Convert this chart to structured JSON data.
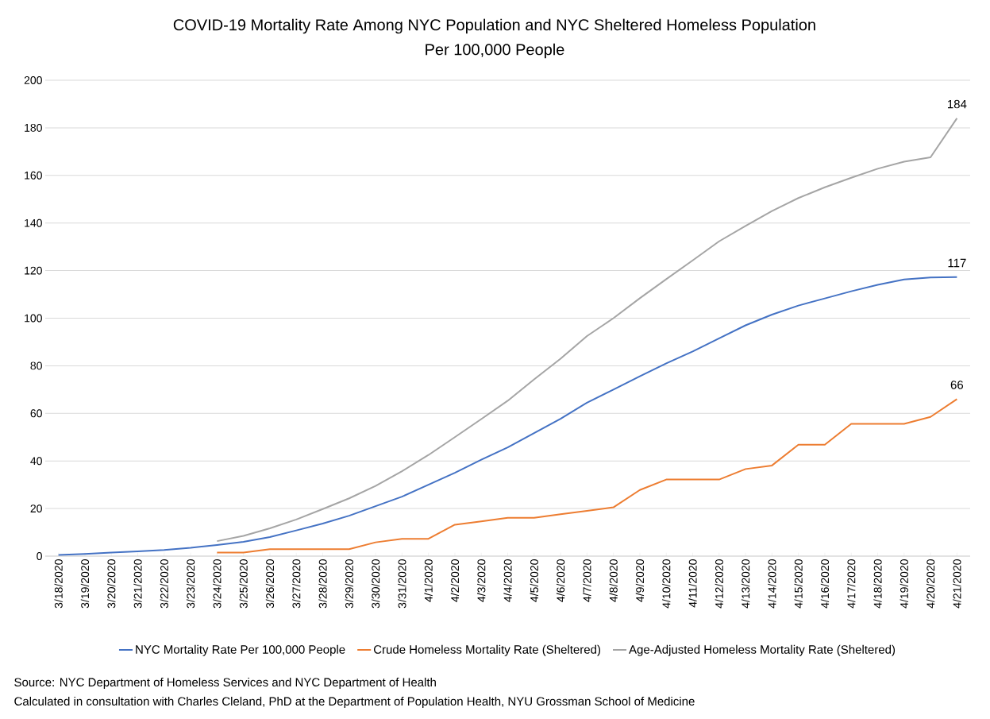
{
  "chart_data": {
    "type": "line",
    "title": "COVID-19 Mortality Rate Among NYC Population and NYC Sheltered Homeless Population",
    "subtitle": "Per 100,000 People",
    "categories": [
      "3/18/2020",
      "3/19/2020",
      "3/20/2020",
      "3/21/2020",
      "3/22/2020",
      "3/23/2020",
      "3/24/2020",
      "3/25/2020",
      "3/26/2020",
      "3/27/2020",
      "3/28/2020",
      "3/29/2020",
      "3/30/2020",
      "3/31/2020",
      "4/1/2020",
      "4/2/2020",
      "4/3/2020",
      "4/4/2020",
      "4/5/2020",
      "4/6/2020",
      "4/7/2020",
      "4/8/2020",
      "4/9/2020",
      "4/10/2020",
      "4/11/2020",
      "4/12/2020",
      "4/13/2020",
      "4/14/2020",
      "4/15/2020",
      "4/16/2020",
      "4/17/2020",
      "4/18/2020",
      "4/19/2020",
      "4/20/2020",
      "4/21/2020"
    ],
    "series": [
      {
        "name": "NYC Mortality Rate Per 100,000 People",
        "color": "#4472c4",
        "values": [
          0.5,
          0.9,
          1.5,
          2,
          2.6,
          3.5,
          4.7,
          6,
          8,
          10.8,
          13.7,
          17,
          21,
          25,
          30,
          35,
          40.5,
          45.7,
          51.7,
          57.7,
          64.5,
          70,
          75.6,
          81,
          86,
          91.5,
          97,
          101.5,
          105.3,
          108.3,
          111.3,
          114,
          116.3,
          117.1,
          117.3
        ]
      },
      {
        "name": "Crude Homeless Mortality Rate (Sheltered)",
        "color": "#ed7d31",
        "values": [
          null,
          null,
          null,
          null,
          null,
          null,
          1.5,
          1.5,
          2.9,
          2.9,
          2.9,
          2.9,
          5.8,
          7.3,
          7.3,
          13.2,
          14.6,
          16.1,
          16.1,
          17.6,
          19,
          20.5,
          27.8,
          32.2,
          32.2,
          32.2,
          36.6,
          38.1,
          46.8,
          46.8,
          55.6,
          55.6,
          55.6,
          58.5,
          66
        ]
      },
      {
        "name": "Age-Adjusted Homeless Mortality Rate (Sheltered)",
        "color": "#a5a5a5",
        "values": [
          null,
          null,
          null,
          null,
          null,
          null,
          6.3,
          8.5,
          11.7,
          15.4,
          19.8,
          24.3,
          29.5,
          35.7,
          42.5,
          50,
          57.6,
          65.3,
          74.3,
          83,
          92.5,
          100,
          108.4,
          116.4,
          124.3,
          132.3,
          138.8,
          145,
          150.5,
          155,
          159,
          162.8,
          165.8,
          167.6,
          184
        ]
      }
    ],
    "ylim": [
      0,
      200
    ],
    "yticks": [
      0,
      20,
      40,
      60,
      80,
      100,
      120,
      140,
      160,
      180,
      200
    ],
    "grid": "y",
    "legend": "bottom",
    "marker": "none",
    "line_style": "solid",
    "annotations": [
      {
        "text": "184",
        "x": "4/21/2020",
        "y": 184
      },
      {
        "text": "117",
        "x": "4/21/2020",
        "y": 117.3
      },
      {
        "text": "66",
        "x": "4/21/2020",
        "y": 66
      },
      "Source: NYC Department of Homeless Services and NYC Department of Health",
      "Calculated in consultation with Charles Cleland, PhD at the Department of Population Health, NYU Grossman School of Medicine"
    ]
  }
}
